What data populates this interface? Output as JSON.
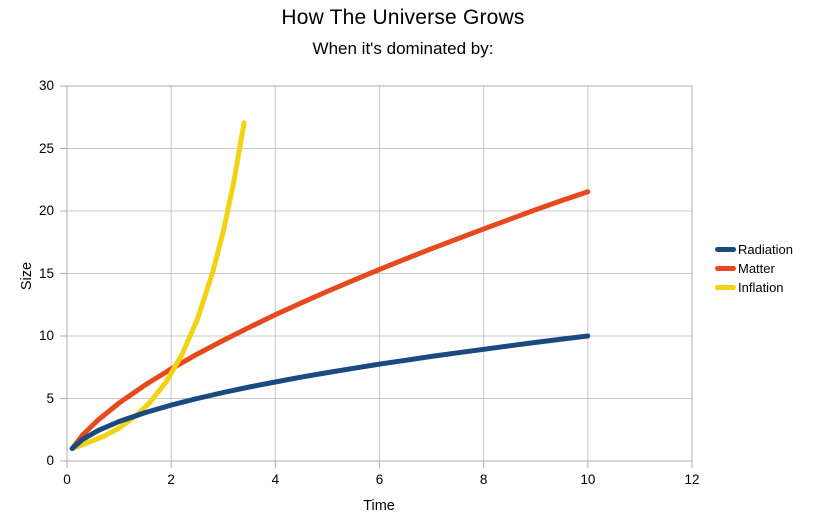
{
  "title": "How The Universe Grows",
  "subtitle": "When it's dominated by:",
  "colors": {
    "background": "#ffffff",
    "grid": "#c8c8c8",
    "border": "#adadad",
    "tick": "#adadad",
    "text": "#000000"
  },
  "chart_data": {
    "type": "line",
    "title": "How The Universe Grows",
    "subtitle": "When it's dominated by:",
    "xlabel": "Time",
    "ylabel": "Size",
    "xlim": [
      0,
      12
    ],
    "ylim": [
      0,
      30
    ],
    "x_ticks": [
      0,
      2,
      4,
      6,
      8,
      10,
      12
    ],
    "y_ticks": [
      0,
      5,
      10,
      15,
      20,
      25,
      30
    ],
    "grid": true,
    "legend_position": "right",
    "series": [
      {
        "name": "Radiation",
        "color": "#1a4a80",
        "points": [
          [
            0.1,
            1.0
          ],
          [
            0.3,
            1.73
          ],
          [
            0.6,
            2.45
          ],
          [
            1,
            3.16
          ],
          [
            1.5,
            3.87
          ],
          [
            2,
            4.47
          ],
          [
            2.5,
            5.0
          ],
          [
            3,
            5.48
          ],
          [
            3.5,
            5.92
          ],
          [
            4,
            6.32
          ],
          [
            4.5,
            6.71
          ],
          [
            5,
            7.07
          ],
          [
            5.5,
            7.42
          ],
          [
            6,
            7.75
          ],
          [
            6.5,
            8.06
          ],
          [
            7,
            8.37
          ],
          [
            7.5,
            8.66
          ],
          [
            8,
            8.94
          ],
          [
            8.5,
            9.22
          ],
          [
            9,
            9.49
          ],
          [
            9.5,
            9.75
          ],
          [
            10,
            10.0
          ]
        ]
      },
      {
        "name": "Matter",
        "color": "#e5491d",
        "points": [
          [
            0.1,
            1.0
          ],
          [
            0.3,
            2.08
          ],
          [
            0.6,
            3.3
          ],
          [
            1,
            4.64
          ],
          [
            1.5,
            6.08
          ],
          [
            2,
            7.37
          ],
          [
            2.5,
            8.55
          ],
          [
            3,
            9.65
          ],
          [
            3.5,
            10.7
          ],
          [
            4,
            11.7
          ],
          [
            4.5,
            12.65
          ],
          [
            5,
            13.57
          ],
          [
            5.5,
            14.46
          ],
          [
            6,
            15.33
          ],
          [
            6.5,
            16.17
          ],
          [
            7,
            16.98
          ],
          [
            7.5,
            17.78
          ],
          [
            8,
            18.57
          ],
          [
            8.5,
            19.34
          ],
          [
            9,
            20.1
          ],
          [
            9.5,
            20.84
          ],
          [
            10,
            21.54
          ]
        ]
      },
      {
        "name": "Inflation",
        "color": "#f2d314",
        "points": [
          [
            0.1,
            1.0
          ],
          [
            0.4,
            1.47
          ],
          [
            0.7,
            1.97
          ],
          [
            1,
            2.64
          ],
          [
            1.3,
            3.53
          ],
          [
            1.6,
            4.72
          ],
          [
            1.9,
            6.32
          ],
          [
            2.2,
            8.45
          ],
          [
            2.5,
            11.3
          ],
          [
            2.8,
            15.12
          ],
          [
            3,
            18.36
          ],
          [
            3.2,
            22.29
          ],
          [
            3.4,
            27.06
          ]
        ]
      }
    ]
  }
}
